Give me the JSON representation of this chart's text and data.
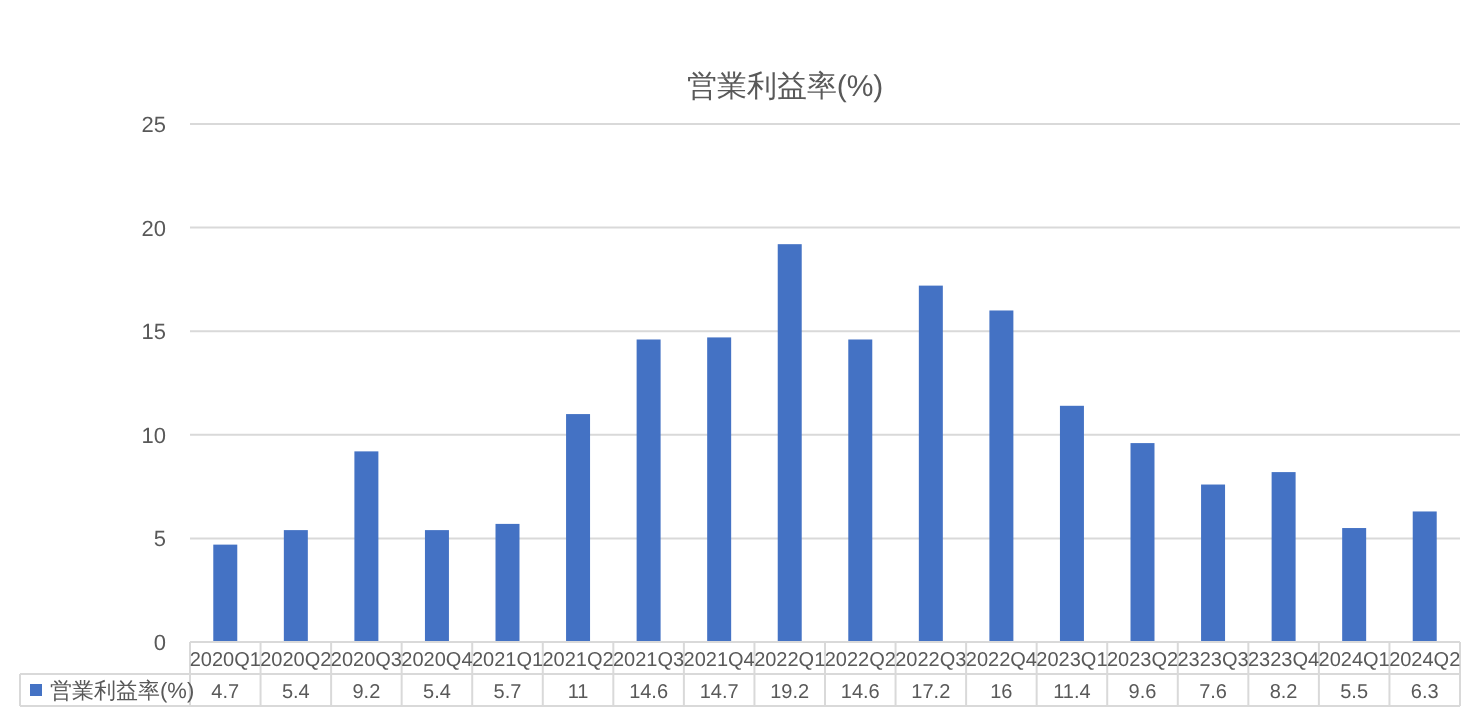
{
  "chart_data": {
    "type": "bar",
    "title": "営業利益率(%)",
    "categories": [
      "2020Q1",
      "2020Q2",
      "2020Q3",
      "2020Q4",
      "2021Q1",
      "2021Q2",
      "2021Q3",
      "2021Q4",
      "2022Q1",
      "2022Q2",
      "2022Q3",
      "2022Q4",
      "2023Q1",
      "2023Q2",
      "2323Q3",
      "2323Q4",
      "2024Q1",
      "2024Q2"
    ],
    "series": [
      {
        "name": "営業利益率(%)",
        "color": "#4472c4",
        "values": [
          4.7,
          5.4,
          9.2,
          5.4,
          5.7,
          11,
          14.6,
          14.7,
          19.2,
          14.6,
          17.2,
          16,
          11.4,
          9.6,
          7.6,
          8.2,
          5.5,
          6.3
        ]
      }
    ],
    "ylim": [
      0,
      25
    ],
    "yticks": [
      0,
      5,
      10,
      15,
      20,
      25
    ],
    "grid": "y",
    "legend": "bottom left",
    "data_labels": true
  }
}
